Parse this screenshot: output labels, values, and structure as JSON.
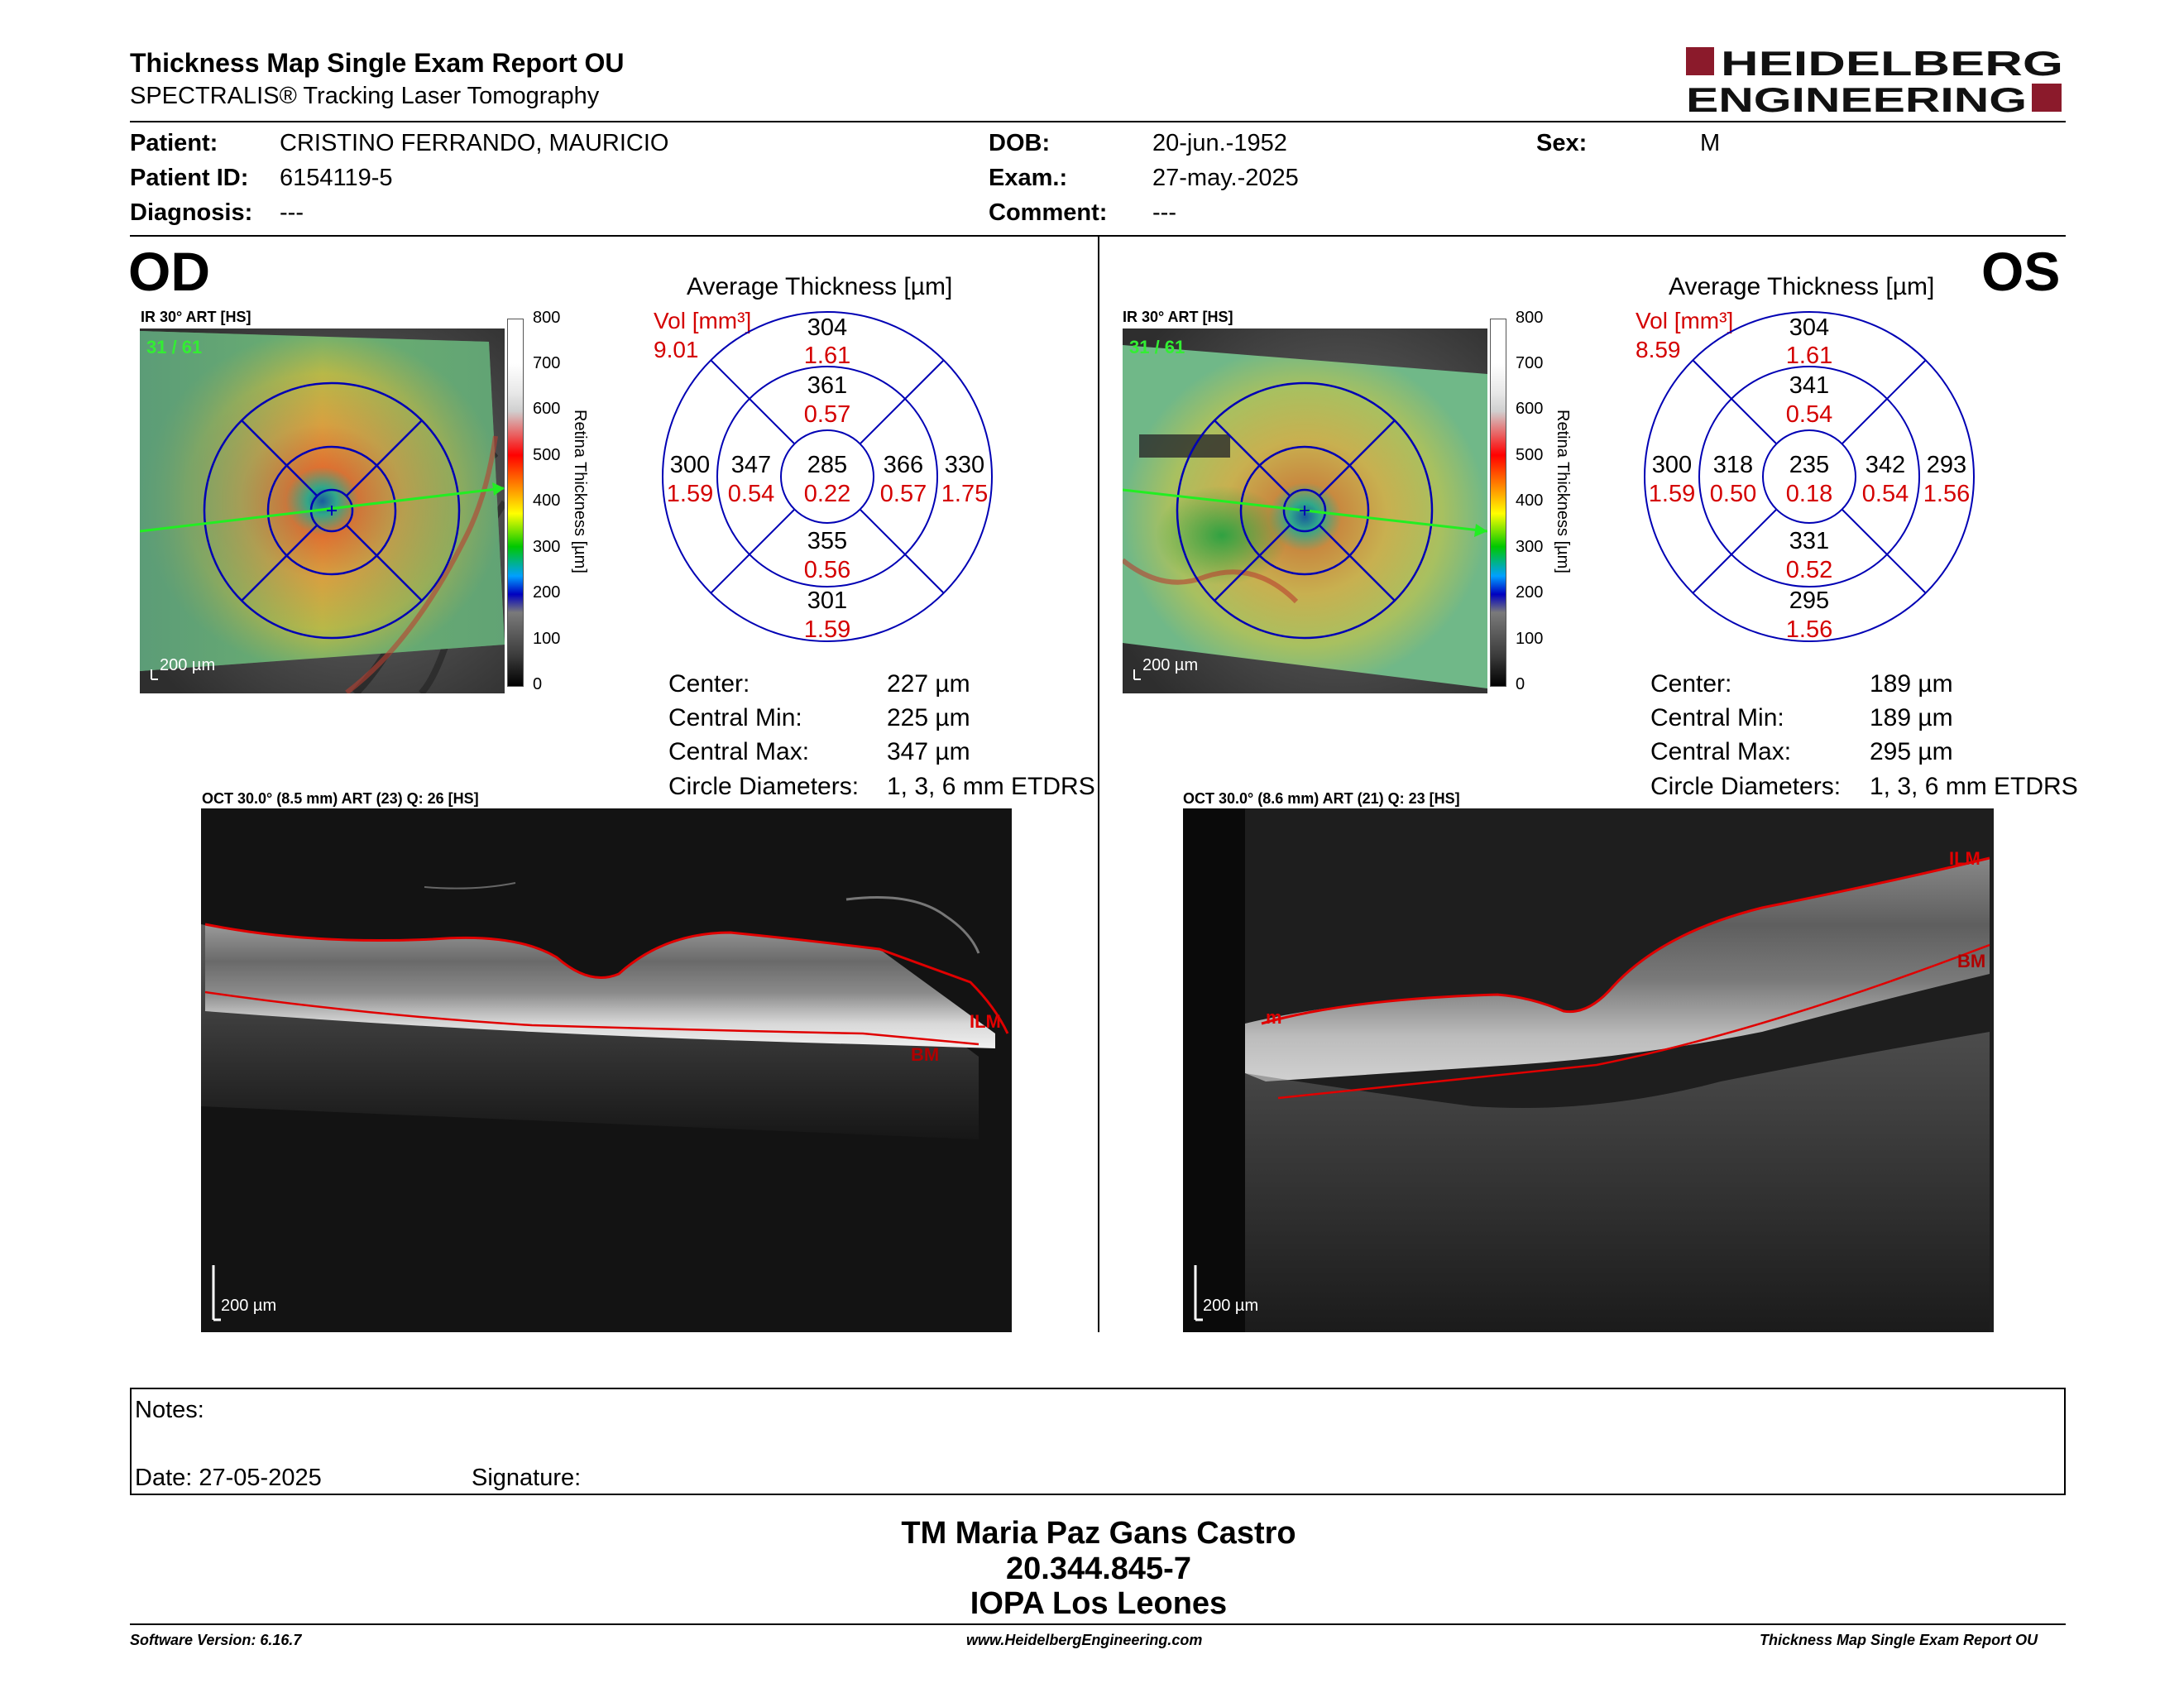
{
  "header": {
    "title": "Thickness Map Single Exam Report OU",
    "subtitle": "SPECTRALIS® Tracking Laser Tomography",
    "logo_line1": "HEIDELBERG",
    "logo_line2": "ENGINEERING",
    "logo_color": "#8b1a2b"
  },
  "patient": {
    "patient_label": "Patient:",
    "patient_value": "CRISTINO FERRANDO, MAURICIO",
    "id_label": "Patient ID:",
    "id_value": "6154119-5",
    "diagnosis_label": "Diagnosis:",
    "diagnosis_value": "---",
    "dob_label": "DOB:",
    "dob_value": "20-jun.-1952",
    "exam_label": "Exam.:",
    "exam_value": "27-may.-2025",
    "comment_label": "Comment:",
    "comment_value": "---",
    "sex_label": "Sex:",
    "sex_value": "M"
  },
  "od": {
    "eye_label": "OD",
    "ir_label": "IR 30° ART [HS]",
    "frame_label": "31 / 61",
    "scale_label": "200 µm",
    "avg_title": "Average Thickness [µm]",
    "vol_label": "Vol [mm³]",
    "vol_total": "9.01",
    "etdrs": {
      "center": {
        "t": "285",
        "v": "0.22"
      },
      "inner_sup": {
        "t": "361",
        "v": "0.57"
      },
      "inner_nas": {
        "t": "366",
        "v": "0.57"
      },
      "inner_inf": {
        "t": "355",
        "v": "0.56"
      },
      "inner_tmp": {
        "t": "347",
        "v": "0.54"
      },
      "outer_sup": {
        "t": "304",
        "v": "1.61"
      },
      "outer_nas": {
        "t": "330",
        "v": "1.75"
      },
      "outer_inf": {
        "t": "301",
        "v": "1.59"
      },
      "outer_tmp": {
        "t": "300",
        "v": "1.59"
      }
    },
    "stats": {
      "center_label": "Center:",
      "center_value": "227 µm",
      "min_label": "Central Min:",
      "min_value": "225 µm",
      "max_label": "Central Max:",
      "max_value": "347 µm",
      "diam_label": "Circle Diameters:",
      "diam_value": "1, 3, 6 mm ETDRS"
    },
    "oct_label": "OCT 30.0° (8.5 mm) ART (23) Q: 26 [HS]",
    "oct_scale": "200 µm",
    "ilm_label": "ILM",
    "bm_label": "BM"
  },
  "os": {
    "eye_label": "OS",
    "ir_label": "IR 30° ART [HS]",
    "frame_label": "31 / 61",
    "scale_label": "200 µm",
    "avg_title": "Average Thickness [µm]",
    "vol_label": "Vol [mm³]",
    "vol_total": "8.59",
    "etdrs": {
      "center": {
        "t": "235",
        "v": "0.18"
      },
      "inner_sup": {
        "t": "341",
        "v": "0.54"
      },
      "inner_nas": {
        "t": "318",
        "v": "0.50"
      },
      "inner_inf": {
        "t": "331",
        "v": "0.52"
      },
      "inner_tmp": {
        "t": "342",
        "v": "0.54"
      },
      "outer_sup": {
        "t": "304",
        "v": "1.61"
      },
      "outer_nas": {
        "t": "300",
        "v": "1.59"
      },
      "outer_inf": {
        "t": "295",
        "v": "1.56"
      },
      "outer_tmp": {
        "t": "293",
        "v": "1.56"
      }
    },
    "stats": {
      "center_label": "Center:",
      "center_value": "189 µm",
      "min_label": "Central Min:",
      "min_value": "189 µm",
      "max_label": "Central Max:",
      "max_value": "295 µm",
      "diam_label": "Circle Diameters:",
      "diam_value": "1, 3, 6 mm ETDRS"
    },
    "oct_label": "OCT 30.0° (8.6 mm) ART (21) Q: 23 [HS]",
    "oct_scale": "200 µm",
    "ilm_label": "ILM",
    "bm_label": "BM",
    "ilm_left_label": "m"
  },
  "colorbar": {
    "ticks": [
      "800",
      "700",
      "600",
      "500",
      "400",
      "300",
      "200",
      "100",
      "0"
    ],
    "label": "Retina  Thickness [µm]"
  },
  "notes": {
    "notes_label": "Notes:",
    "date_label": "Date: 27-05-2025",
    "signature_label": "Signature:"
  },
  "signature_block": {
    "name": "TM Maria Paz Gans Castro",
    "rut": "20.344.845-7",
    "clinic": "IOPA Los Leones"
  },
  "footer": {
    "software": "Software Version: 6.16.7",
    "website": "www.HeidelbergEngineering.com",
    "report": "Thickness Map Single Exam Report OU"
  },
  "colors": {
    "etdrs_lines": "#0000b4",
    "volume_red": "#d40000",
    "layer_line": "#e00000",
    "frame_green": "#33ee33"
  }
}
